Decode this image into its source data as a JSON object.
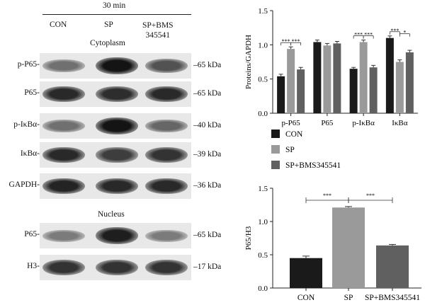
{
  "western_blot": {
    "time_label": "30 min",
    "lane_labels": [
      "CON",
      "SP",
      "SP+BMS\n345541"
    ],
    "section_cytoplasm": "Cytoplasm",
    "section_nucleus": "Nucleus",
    "rows": [
      {
        "name": "p-P65-",
        "kda": "–65 kDa",
        "intensity": [
          0.55,
          1.0,
          0.7
        ]
      },
      {
        "name": "P65-",
        "kda": "–65 kDa",
        "intensity": [
          0.9,
          0.88,
          0.9
        ]
      },
      {
        "name": "p-IκBα-",
        "kda": "–40 kDa",
        "intensity": [
          0.55,
          1.0,
          0.6
        ]
      },
      {
        "name": "IκBα-",
        "kda": "–39 kDa",
        "intensity": [
          0.9,
          0.8,
          0.85
        ]
      },
      {
        "name": "GAPDH-",
        "kda": "–36 kDa",
        "intensity": [
          0.92,
          0.9,
          0.9
        ]
      },
      {
        "name": "P65-",
        "kda": "–65 kDa",
        "intensity": [
          0.5,
          0.95,
          0.5
        ]
      },
      {
        "name": "H3-",
        "kda": "–17 kDa",
        "intensity": [
          0.85,
          0.85,
          0.85
        ]
      }
    ]
  },
  "colors": {
    "CON": "#1a1a1a",
    "SP": "#9a9a9a",
    "SP+BMS345541": "#606060"
  },
  "chart_data": [
    {
      "type": "bar",
      "categories": [
        "p-P65",
        "P65",
        "p-IκBα",
        "IκBα"
      ],
      "ylabel": "Proteins/GAPDH",
      "ylim": [
        0,
        1.5
      ],
      "yticks": [
        "0.0",
        "0.5",
        "1.0",
        "1.5"
      ],
      "series": [
        {
          "name": "CON",
          "values": [
            0.54,
            1.04,
            0.65,
            1.1
          ],
          "errors": [
            0.03,
            0.03,
            0.02,
            0.03
          ]
        },
        {
          "name": "SP",
          "values": [
            0.94,
            0.99,
            1.04,
            0.75
          ],
          "errors": [
            0.03,
            0.03,
            0.03,
            0.03
          ]
        },
        {
          "name": "SP+BMS345541",
          "values": [
            0.64,
            1.02,
            0.67,
            0.89
          ],
          "errors": [
            0.03,
            0.03,
            0.03,
            0.03
          ]
        }
      ],
      "significance": [
        {
          "group": 0,
          "from": 0,
          "to": 1,
          "label": "***"
        },
        {
          "group": 0,
          "from": 1,
          "to": 2,
          "label": "***"
        },
        {
          "group": 2,
          "from": 0,
          "to": 1,
          "label": "***"
        },
        {
          "group": 2,
          "from": 1,
          "to": 2,
          "label": "***"
        },
        {
          "group": 3,
          "from": 0,
          "to": 1,
          "label": "***"
        },
        {
          "group": 3,
          "from": 1,
          "to": 2,
          "label": "*"
        }
      ],
      "legend": [
        "CON",
        "SP",
        "SP+BMS345541"
      ]
    },
    {
      "type": "bar",
      "categories": [
        "CON",
        "SP",
        "SP+BMS345541"
      ],
      "ylabel": "P65/H3",
      "ylim": [
        0,
        1.5
      ],
      "yticks": [
        "0.0",
        "0.5",
        "1.0",
        "1.5"
      ],
      "values": [
        0.45,
        1.21,
        0.64
      ],
      "errors": [
        0.03,
        0.015,
        0.015
      ],
      "significance": [
        {
          "from": 0,
          "to": 1,
          "label": "***"
        },
        {
          "from": 1,
          "to": 2,
          "label": "***"
        }
      ]
    }
  ]
}
